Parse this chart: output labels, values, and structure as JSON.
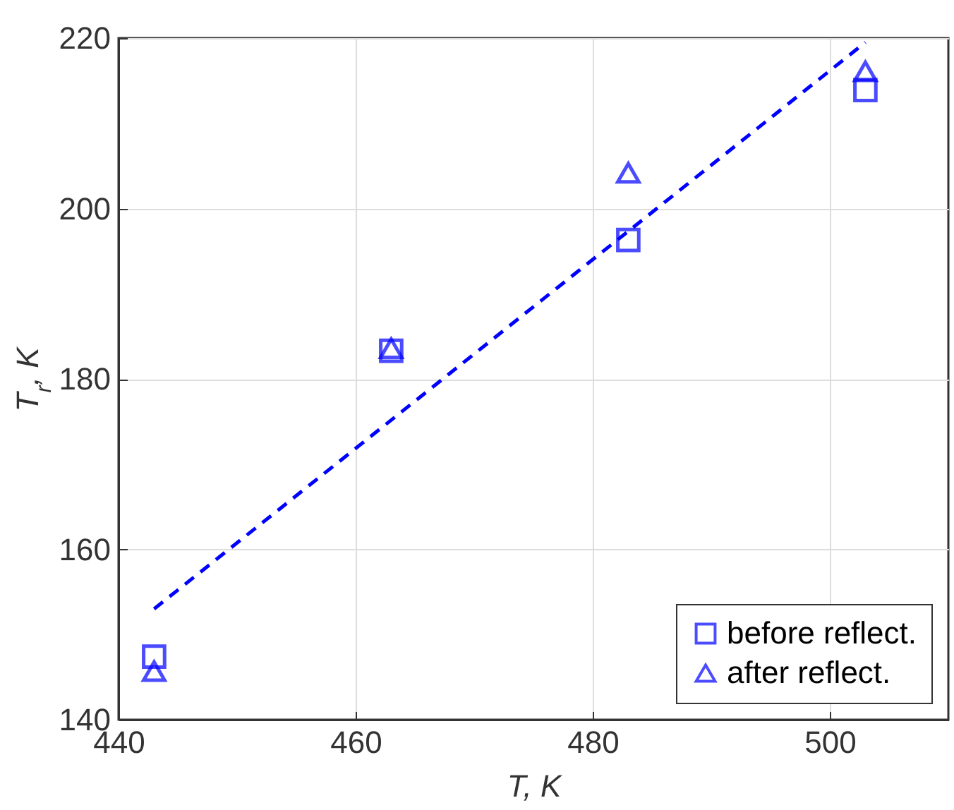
{
  "chart_data": {
    "type": "scatter",
    "xlabel": "T, K",
    "ylabel": "T$_{r}$, K",
    "xlim": [
      440,
      510
    ],
    "xticks": [
      440,
      460,
      480,
      500
    ],
    "ylim": [
      140,
      220
    ],
    "yticks": [
      140,
      160,
      180,
      200,
      220
    ],
    "grid": true,
    "legend": "bottom right",
    "series": [
      {
        "name": "before reflect.",
        "color": "#0000ff",
        "marker": "square",
        "x": [
          443,
          463,
          483,
          503
        ],
        "values": [
          147.4,
          183.3,
          196.3,
          213.9
        ]
      },
      {
        "name": "after reflect.",
        "color": "#0000ff",
        "marker": "triangle",
        "x": [
          443,
          463,
          483,
          503
        ],
        "values": [
          145.7,
          183.6,
          204.2,
          216.1
        ]
      },
      {
        "type": "line",
        "color": "#0000ff",
        "line_style": "dashed",
        "marker": "none",
        "x": [
          443,
          503
        ],
        "values": [
          153.0,
          219.5
        ]
      }
    ]
  }
}
